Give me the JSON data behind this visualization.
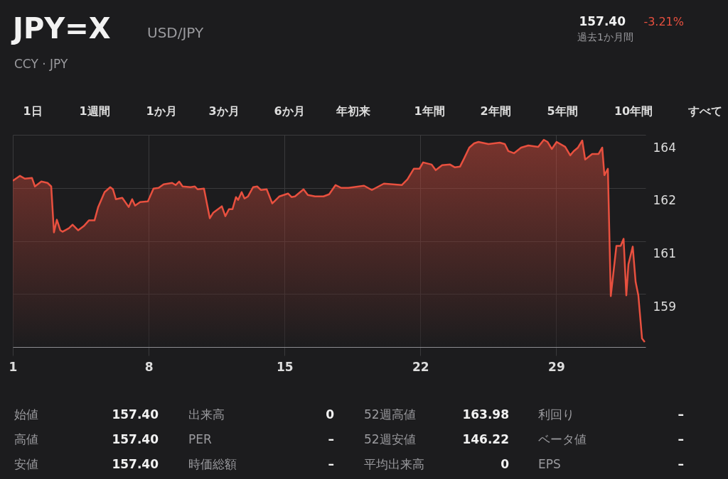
{
  "chart_data": {
    "type": "area",
    "title": "JPY=X",
    "subtitle": "USD/JPY",
    "color": "#e8503f",
    "x": [
      1.0,
      1.37,
      1.62,
      1.99,
      2.14,
      2.47,
      2.79,
      2.98,
      3.12,
      3.27,
      3.45,
      3.56,
      3.89,
      4.08,
      4.37,
      4.66,
      4.92,
      5.21,
      5.4,
      5.73,
      6.02,
      6.16,
      6.31,
      6.64,
      6.97,
      7.15,
      7.3,
      7.56,
      7.96,
      8.25,
      8.51,
      8.77,
      9.21,
      9.39,
      9.57,
      9.75,
      10.16,
      10.38,
      10.52,
      10.85,
      11.15,
      11.33,
      11.77,
      11.95,
      12.14,
      12.32,
      12.5,
      12.61,
      12.79,
      12.94,
      13.12,
      13.38,
      13.6,
      13.78,
      14.08,
      14.37,
      14.74,
      15.18,
      15.36,
      15.54,
      15.98,
      16.2,
      16.57,
      17.01,
      17.3,
      17.63,
      17.92,
      18.29,
      19.1,
      19.5,
      20.12,
      21.04,
      21.33,
      21.66,
      21.95,
      22.14,
      22.58,
      22.79,
      23.12,
      23.53,
      23.78,
      24.04,
      24.26,
      24.52,
      24.77,
      24.99,
      25.51,
      26.09,
      26.35,
      26.53,
      26.82,
      27.19,
      27.56,
      28.07,
      28.36,
      28.55,
      28.77,
      29.02,
      29.46,
      29.72,
      29.9,
      30.12,
      30.34,
      30.49,
      30.85,
      31.18,
      31.37,
      31.48,
      31.66,
      31.81,
      32.1,
      32.32,
      32.47,
      32.61,
      32.72,
      32.94,
      33.09,
      33.23,
      33.42,
      33.56
    ],
    "values": [
      162.7,
      162.84,
      162.76,
      162.78,
      162.54,
      162.68,
      162.64,
      162.54,
      161.24,
      161.6,
      161.3,
      161.26,
      161.36,
      161.46,
      161.3,
      161.42,
      161.58,
      161.58,
      161.96,
      162.38,
      162.52,
      162.46,
      162.18,
      162.22,
      161.96,
      162.18,
      162.0,
      162.1,
      162.12,
      162.48,
      162.5,
      162.6,
      162.64,
      162.58,
      162.68,
      162.54,
      162.52,
      162.54,
      162.46,
      162.48,
      161.64,
      161.8,
      161.98,
      161.7,
      161.9,
      161.9,
      162.24,
      162.16,
      162.38,
      162.2,
      162.26,
      162.52,
      162.54,
      162.44,
      162.46,
      162.06,
      162.26,
      162.34,
      162.24,
      162.26,
      162.46,
      162.3,
      162.26,
      162.26,
      162.32,
      162.58,
      162.5,
      162.5,
      162.56,
      162.44,
      162.62,
      162.58,
      162.74,
      163.04,
      163.04,
      163.22,
      163.16,
      163.0,
      163.14,
      163.16,
      163.08,
      163.1,
      163.34,
      163.64,
      163.76,
      163.8,
      163.74,
      163.78,
      163.74,
      163.54,
      163.48,
      163.64,
      163.7,
      163.66,
      163.86,
      163.8,
      163.6,
      163.8,
      163.66,
      163.42,
      163.54,
      163.64,
      163.84,
      163.3,
      163.46,
      163.46,
      163.64,
      162.86,
      163.04,
      159.44,
      160.86,
      160.86,
      161.06,
      159.46,
      160.34,
      160.84,
      159.84,
      159.46,
      158.24,
      158.14
    ],
    "xlim": [
      1,
      33.6
    ],
    "xticks": [
      1,
      8,
      15,
      22,
      29
    ],
    "ylim": [
      158,
      164
    ],
    "yticks": [
      {
        "value": 164,
        "label": "164"
      },
      {
        "value": 162.5,
        "label": "162"
      },
      {
        "value": 161,
        "label": "161"
      },
      {
        "value": 159.5,
        "label": "159"
      }
    ],
    "grid": true,
    "annotations": [
      "CCY · JPY",
      "157.40",
      "-3.21%",
      "過去1か月間",
      "1日",
      "1週間",
      "1か月",
      "3か月",
      "6か月",
      "年初来",
      "1年間",
      "2年間",
      "5年間",
      "10年間",
      "すべて",
      "始値",
      "157.40",
      "出来高",
      "0",
      "52週高値",
      "163.98",
      "利回り",
      "–",
      "高値",
      "157.40",
      "PER",
      "–",
      "52週安値",
      "146.22",
      "ベータ値",
      "–",
      "安値",
      "157.40",
      "時価総額",
      "–",
      "平均出来高",
      "0",
      "EPS",
      "–"
    ]
  }
}
